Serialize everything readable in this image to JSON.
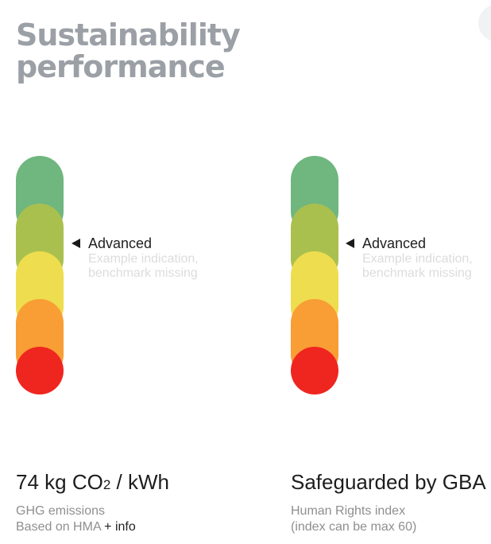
{
  "title": {
    "line1": "Sustainability",
    "line2": "performance"
  },
  "colors": {
    "title": "#9ba0a6",
    "levels": [
      "#6fb67f",
      "#a9c04f",
      "#eedd4e",
      "#f99d35",
      "#ef2520"
    ],
    "note": "#dcdcdc",
    "caption": "#8f8f8f"
  },
  "metrics": [
    {
      "indicator": {
        "level": "Advanced",
        "note_line1": "Example indication,",
        "note_line2": "benchmark missing"
      },
      "value_prefix": "74 kg CO",
      "value_sub": "2",
      "value_suffix": " / kWh",
      "caption_line1": "GHG emissions",
      "caption_line2_prefix": "Based on HMA",
      "info_link": " + info"
    },
    {
      "indicator": {
        "level": "Advanced",
        "note_line1": "Example indication,",
        "note_line2": "benchmark missing"
      },
      "value": "Safeguarded by GBA",
      "caption_line1": "Human Rights index",
      "caption_line2": "(index can be max 60)"
    }
  ]
}
